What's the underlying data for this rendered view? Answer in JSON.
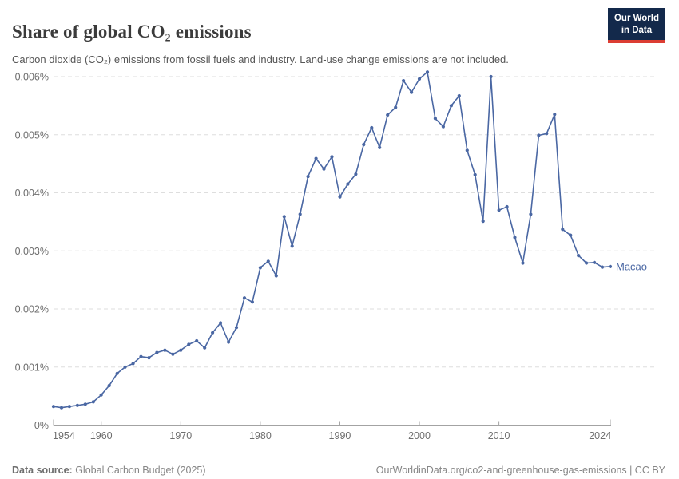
{
  "header": {
    "title": "Share of global CO₂ emissions",
    "subtitle": "Carbon dioxide (CO₂) emissions from fossil fuels and industry. Land-use change emissions are not included.",
    "logo_line1": "Our World",
    "logo_line2": "in Data"
  },
  "footer": {
    "source_label": "Data source:",
    "source_value": " Global Carbon Budget (2025)",
    "link": "OurWorldinData.org/co2-and-greenhouse-gas-emissions | CC BY"
  },
  "colors": {
    "line": "#4a67a3",
    "grid": "#dedede",
    "axis": "#a3a3a3",
    "tick_text": "#6e6e6e",
    "logo_bg": "#13294b",
    "logo_red": "#dc3d33"
  },
  "chart_data": {
    "type": "line",
    "title": "Share of global CO₂ emissions",
    "entity_label": "Macao",
    "unit": "%",
    "grid": true,
    "legend_position": "end-of-line",
    "xlim": [
      1954,
      2024
    ],
    "ylim": [
      0,
      0.0062
    ],
    "x_ticks": [
      1954,
      1960,
      1970,
      1980,
      1990,
      2000,
      2010,
      2024
    ],
    "y_ticks": [
      0,
      0.001,
      0.002,
      0.003,
      0.004,
      0.005,
      0.006
    ],
    "y_tick_labels": [
      "0%",
      "0.001%",
      "0.002%",
      "0.003%",
      "0.004%",
      "0.005%",
      "0.006%"
    ],
    "years": [
      1954,
      1955,
      1956,
      1957,
      1958,
      1959,
      1960,
      1961,
      1962,
      1963,
      1964,
      1965,
      1966,
      1967,
      1968,
      1969,
      1970,
      1971,
      1972,
      1973,
      1974,
      1975,
      1976,
      1977,
      1978,
      1979,
      1980,
      1981,
      1982,
      1983,
      1984,
      1985,
      1986,
      1987,
      1988,
      1989,
      1990,
      1991,
      1992,
      1993,
      1994,
      1995,
      1996,
      1997,
      1998,
      1999,
      2000,
      2001,
      2002,
      2003,
      2004,
      2005,
      2006,
      2007,
      2008,
      2009,
      2010,
      2011,
      2012,
      2013,
      2014,
      2015,
      2016,
      2017,
      2018,
      2019,
      2020,
      2021,
      2022,
      2023,
      2024
    ],
    "series": [
      {
        "name": "Macao",
        "color": "#4a67a3",
        "values": [
          0.00032,
          0.0003,
          0.00032,
          0.00034,
          0.00036,
          0.0004,
          0.00052,
          0.00068,
          0.00089,
          0.001,
          0.00106,
          0.00118,
          0.00116,
          0.00125,
          0.00129,
          0.00122,
          0.00129,
          0.00139,
          0.00145,
          0.00133,
          0.00159,
          0.00176,
          0.00143,
          0.00168,
          0.00219,
          0.00212,
          0.00271,
          0.00282,
          0.00257,
          0.00359,
          0.00308,
          0.00363,
          0.00428,
          0.00459,
          0.00441,
          0.00462,
          0.00393,
          0.00415,
          0.00432,
          0.00483,
          0.00512,
          0.00478,
          0.00534,
          0.00547,
          0.00593,
          0.00573,
          0.00596,
          0.00608,
          0.00528,
          0.00514,
          0.0055,
          0.00567,
          0.00473,
          0.00431,
          0.00351,
          0.006,
          0.0037,
          0.00376,
          0.00323,
          0.00279,
          0.00363,
          0.00499,
          0.00502,
          0.00535,
          0.00337,
          0.00327,
          0.00292,
          0.00279,
          0.0028,
          0.00272,
          0.00273
        ]
      }
    ]
  }
}
